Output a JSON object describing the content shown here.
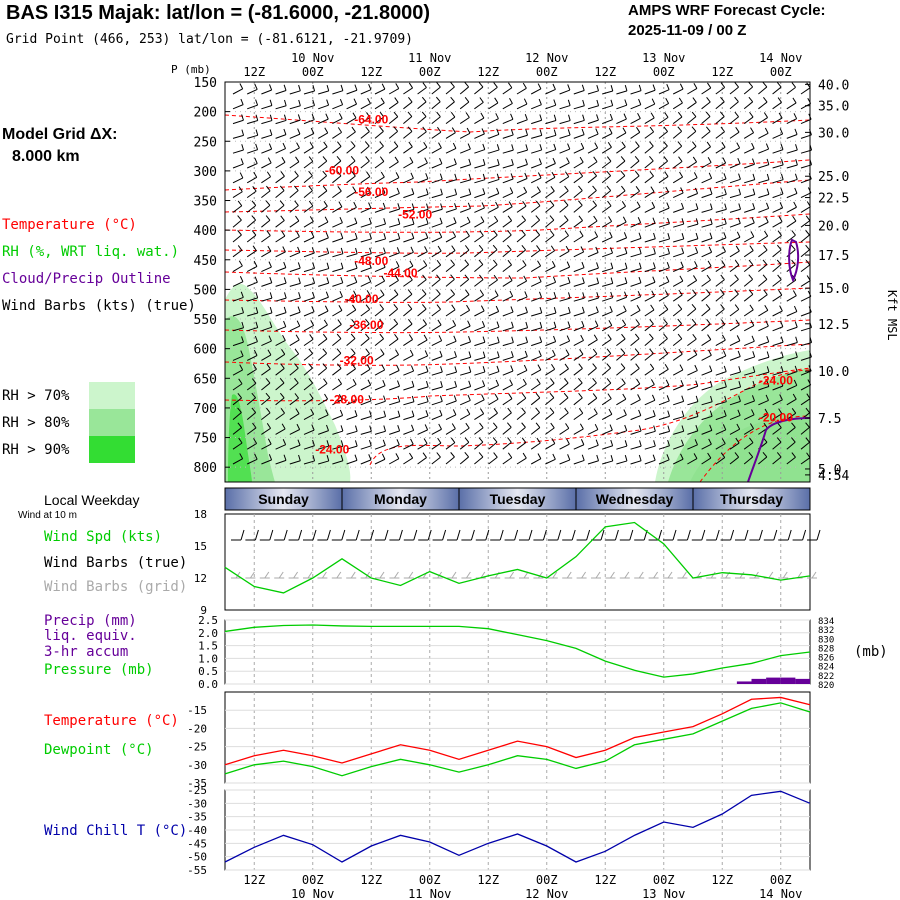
{
  "header": {
    "title": "BAS I315 Majak:  lat/lon = (-81.6000, -21.8000)",
    "grid_point": "Grid Point (466, 253) lat/lon = (-81.6121, -21.9709)",
    "cycle_title": "AMPS WRF Forecast Cycle:",
    "cycle_value": "2025-11-09 / 00  Z"
  },
  "model_grid": {
    "label": "Model Grid ΔX:",
    "value": "8.000 km"
  },
  "time_axis": {
    "hour_labels": [
      "12Z",
      "00Z",
      "12Z",
      "00Z",
      "12Z",
      "00Z",
      "12Z",
      "00Z",
      "12Z",
      "00Z"
    ],
    "date_labels": [
      "10 Nov",
      "11 Nov",
      "12 Nov",
      "13 Nov",
      "14 Nov"
    ]
  },
  "legend_upper": {
    "temperature": "Temperature (°C)",
    "rh": "RH (%, WRT liq. wat.)",
    "cloud": "Cloud/Precip Outline",
    "wind_barbs": "Wind Barbs (kts) (true)",
    "rh70": "RH > 70%",
    "rh80": "RH > 80%",
    "rh90": "RH > 90%"
  },
  "legend_lower": {
    "local_weekday": "Local Weekday",
    "wind_at_10m": "Wind at 10 m",
    "wind_speed": "Wind Spd (kts)",
    "wind_barbs_true": "Wind Barbs (true)",
    "wind_barbs_grid": "Wind Barbs (grid)",
    "precip": "Precip (mm)",
    "liq_equiv": "liq. equiv.",
    "accum": "3-hr accum",
    "pressure": "Pressure (mb)",
    "pressure_unit": "(mb)",
    "temperature": "Temperature (°C)",
    "dewpoint": "Dewpoint (°C)",
    "wind_chill": "Wind Chill T (°C)"
  },
  "weekdays": [
    "Sunday",
    "Monday",
    "Tuesday",
    "Wednesday",
    "Thursday"
  ],
  "colors": {
    "temperature": "#ff0000",
    "dewpoint": "#00cc00",
    "wind_speed": "#00cc00",
    "pressure": "#00cc00",
    "precip": "#660099",
    "wind_chill": "#0000aa",
    "cloud": "#660099",
    "rh70": "#ccf5cc",
    "rh80": "#99e699",
    "rh90": "#33dd33",
    "weekday_bar": "#5a6fa8",
    "barb_true": "#000000",
    "barb_grid": "#aaaaaa"
  },
  "chart_data": [
    {
      "type": "heatmap",
      "name": "time-height cross section",
      "yaxis_pressure_label": "P (mb)",
      "yaxis_pressure_ticks": [
        150,
        200,
        250,
        300,
        350,
        400,
        450,
        500,
        550,
        600,
        650,
        700,
        750,
        800
      ],
      "yaxis_pressure_range": [
        150,
        825
      ],
      "yaxis_height_label": "Kft MSL",
      "yaxis_height_ticks": [
        "40.0",
        "35.0",
        "30.0",
        "25.0",
        "22.5",
        "20.0",
        "17.5",
        "15.0",
        "12.5",
        "10.0",
        "7.5",
        "5.0",
        "4.54"
      ],
      "height_tick_pressures": [
        154,
        190,
        235,
        309,
        345,
        392,
        442,
        498,
        558,
        638,
        717,
        803,
        813
      ],
      "x_range_hours": [
        0,
        120
      ],
      "temperature_contours": [
        {
          "label": "-64.00",
          "x": 30,
          "p": 213
        },
        {
          "label": "-60.00",
          "x": 24,
          "p": 299
        },
        {
          "label": "-56.00",
          "x": 30,
          "p": 336
        },
        {
          "label": "-52.00",
          "x": 39,
          "p": 374
        },
        {
          "label": "-48.00",
          "x": 30,
          "p": 452
        },
        {
          "label": "-44.00",
          "x": 36,
          "p": 472
        },
        {
          "label": "-40.00",
          "x": 28,
          "p": 516
        },
        {
          "label": "-36.00",
          "x": 29,
          "p": 560
        },
        {
          "label": "-32.00",
          "x": 27,
          "p": 620
        },
        {
          "label": "-28.00",
          "x": 25,
          "p": 686
        },
        {
          "label": "-24.00",
          "x": 22,
          "p": 770
        },
        {
          "label": "-24.00",
          "x": 113,
          "p": 654
        },
        {
          "label": "-20.00",
          "x": 113,
          "p": 716
        }
      ]
    },
    {
      "type": "line",
      "name": "10 m wind speed",
      "ylabel": "Wind Spd (kts)",
      "yticks": [
        9,
        12,
        15,
        18
      ],
      "ylim": [
        9,
        18
      ],
      "x_hours": [
        0,
        6,
        12,
        18,
        24,
        30,
        36,
        42,
        48,
        54,
        60,
        66,
        72,
        78,
        84,
        90,
        96,
        102,
        108,
        114,
        120
      ],
      "values": [
        13.0,
        11.2,
        10.6,
        12.0,
        13.8,
        12.0,
        11.3,
        12.6,
        11.5,
        12.2,
        12.8,
        12.0,
        14.0,
        16.8,
        17.2,
        15.2,
        12.0,
        12.5,
        12.3,
        11.8,
        12.2
      ]
    },
    {
      "type": "line",
      "name": "precipitation and surface pressure",
      "ylabel_left": "Precip (mm)",
      "yticks_left": [
        "0.0",
        "0.5",
        "1.0",
        "1.5",
        "2.0",
        "2.5"
      ],
      "ylim_left": [
        0,
        2.5
      ],
      "ylabel_right": "Pressure (mb)",
      "yticks_right": [
        820,
        822,
        824,
        826,
        828,
        830,
        832,
        834
      ],
      "ylim_right": [
        820,
        834
      ],
      "x_hours": [
        0,
        6,
        12,
        18,
        24,
        30,
        36,
        42,
        48,
        54,
        60,
        66,
        72,
        78,
        84,
        90,
        96,
        102,
        108,
        114,
        120
      ],
      "pressure": [
        831.5,
        832.4,
        832.8,
        832.9,
        832.7,
        832.6,
        832.6,
        832.6,
        832.6,
        832.1,
        830.8,
        829.5,
        827.8,
        825.0,
        823.0,
        821.5,
        822.2,
        823.5,
        824.5,
        826.2,
        827.0
      ],
      "precip_bars": [
        {
          "x_start": 105,
          "x_end": 108,
          "value": 0.1
        },
        {
          "x_start": 108,
          "x_end": 111,
          "value": 0.2
        },
        {
          "x_start": 111,
          "x_end": 114,
          "value": 0.25
        },
        {
          "x_start": 114,
          "x_end": 117,
          "value": 0.25
        },
        {
          "x_start": 117,
          "x_end": 120,
          "value": 0.2
        }
      ]
    },
    {
      "type": "line",
      "name": "temperature and dewpoint",
      "yticks": [
        -35,
        -30,
        -25,
        -20,
        -15
      ],
      "ylim": [
        -35,
        -10
      ],
      "x_hours": [
        0,
        6,
        12,
        18,
        24,
        30,
        36,
        42,
        48,
        54,
        60,
        66,
        72,
        78,
        84,
        90,
        96,
        102,
        108,
        114,
        120
      ],
      "series": [
        {
          "name": "Temperature (°C)",
          "values": [
            -30.0,
            -27.5,
            -26.0,
            -27.5,
            -29.5,
            -27.0,
            -24.5,
            -26.0,
            -28.5,
            -26.0,
            -23.5,
            -25.0,
            -28.0,
            -26.0,
            -22.5,
            -21.0,
            -19.5,
            -16.0,
            -12.0,
            -11.5,
            -13.5
          ]
        },
        {
          "name": "Dewpoint (°C)",
          "values": [
            -32.5,
            -30.0,
            -29.0,
            -30.5,
            -33.0,
            -30.5,
            -28.5,
            -30.0,
            -32.0,
            -30.0,
            -27.5,
            -28.5,
            -31.0,
            -29.0,
            -24.5,
            -23.0,
            -21.5,
            -18.0,
            -14.5,
            -13.0,
            -15.5
          ]
        }
      ]
    },
    {
      "type": "line",
      "name": "wind chill",
      "ylabel": "Wind Chill T (°C)",
      "yticks": [
        -55,
        -50,
        -45,
        -40,
        -35,
        -30,
        -25
      ],
      "ylim": [
        -55,
        -25
      ],
      "x_hours": [
        0,
        6,
        12,
        18,
        24,
        30,
        36,
        42,
        48,
        54,
        60,
        66,
        72,
        78,
        84,
        90,
        96,
        102,
        108,
        114,
        120
      ],
      "values": [
        -52.0,
        -46.5,
        -42.0,
        -45.5,
        -52.0,
        -46.0,
        -42.0,
        -44.5,
        -49.5,
        -45.0,
        -41.5,
        -46.0,
        -52.0,
        -48.0,
        -42.0,
        -37.0,
        -39.0,
        -34.0,
        -27.0,
        -25.5,
        -30.0
      ]
    }
  ]
}
